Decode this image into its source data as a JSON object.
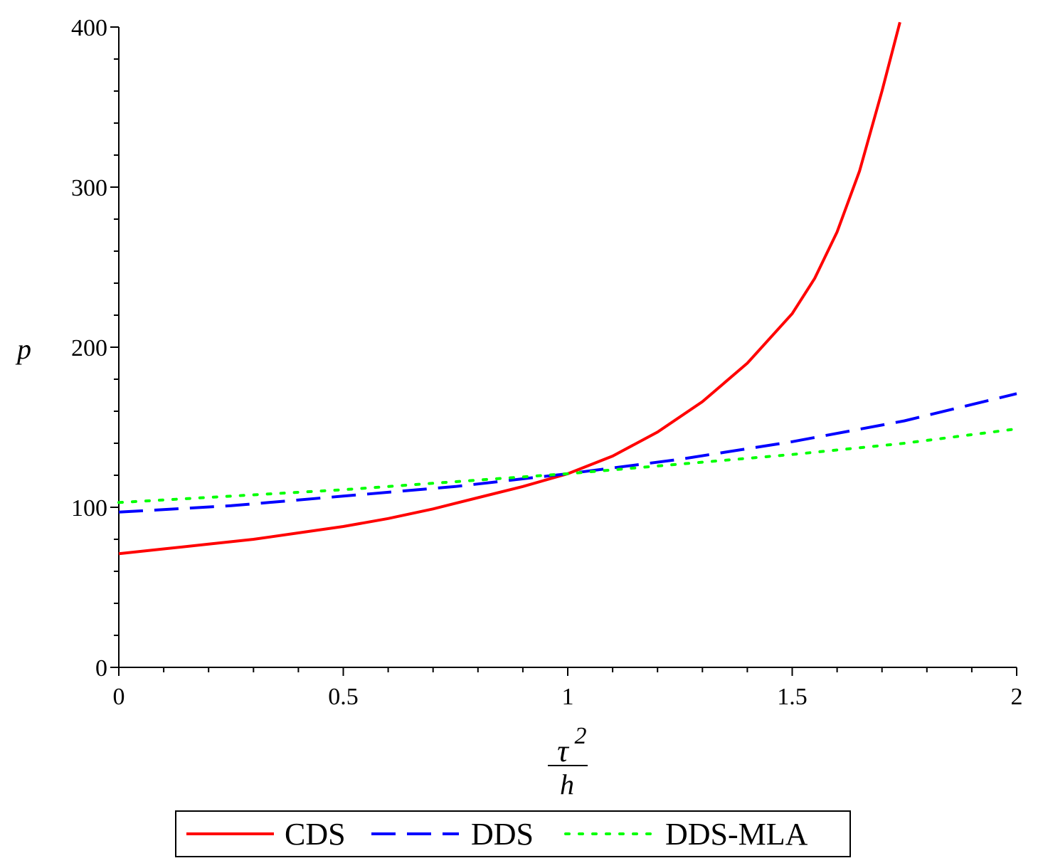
{
  "chart_data": {
    "type": "line",
    "title": "",
    "xlabel": {
      "numerator": "τ",
      "exponent": "2",
      "denominator": "h"
    },
    "ylabel": "p",
    "xlim": [
      0,
      2
    ],
    "ylim": [
      0,
      400
    ],
    "x_ticks": [
      "0",
      "0.5",
      "1",
      "1.5",
      "2"
    ],
    "y_ticks": [
      "0",
      "100",
      "200",
      "300",
      "400"
    ],
    "x_tick_values": [
      0,
      0.5,
      1,
      1.5,
      2
    ],
    "y_tick_values": [
      0,
      100,
      200,
      300,
      400
    ],
    "grid": false,
    "legend_position": "bottom-center",
    "series": [
      {
        "name": "CDS",
        "color": "#ff0000",
        "style": "solid",
        "x": [
          0,
          0.1,
          0.2,
          0.3,
          0.4,
          0.5,
          0.6,
          0.7,
          0.8,
          0.9,
          1.0,
          1.1,
          1.2,
          1.3,
          1.4,
          1.5,
          1.55,
          1.6,
          1.65,
          1.7,
          1.74
        ],
        "y": [
          71,
          74,
          77,
          80,
          84,
          88,
          93,
          99,
          106,
          113,
          121,
          132,
          147,
          166,
          190,
          221,
          243,
          272,
          310,
          360,
          403
        ]
      },
      {
        "name": "DDS",
        "color": "#0000ff",
        "style": "dashed",
        "x": [
          0,
          0.25,
          0.5,
          0.75,
          1.0,
          1.25,
          1.5,
          1.75,
          2.0
        ],
        "y": [
          97,
          101,
          107,
          113,
          121,
          130,
          141,
          154,
          171
        ]
      },
      {
        "name": "DDS-MLA",
        "color": "#00ff00",
        "style": "dotted",
        "x": [
          0,
          0.25,
          0.5,
          0.75,
          1.0,
          1.25,
          1.5,
          1.75,
          2.0
        ],
        "y": [
          103,
          107,
          111,
          116,
          121,
          127,
          133,
          140,
          149
        ]
      }
    ]
  }
}
